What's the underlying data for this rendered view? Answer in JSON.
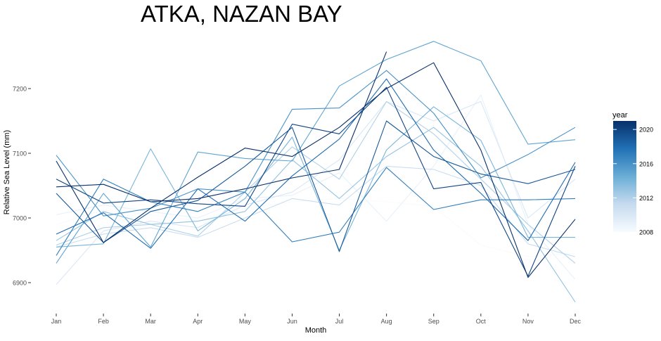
{
  "chart_data": {
    "type": "line",
    "title": "ATKA, NAZAN BAY",
    "xlabel": "Month",
    "ylabel": "Relative Sea Level (mm)",
    "categories": [
      "Jan",
      "Feb",
      "Mar",
      "Apr",
      "May",
      "Jun",
      "Jul",
      "Aug",
      "Sep",
      "Oct",
      "Nov",
      "Dec"
    ],
    "yticks": [
      6900,
      7000,
      7100,
      7200
    ],
    "ylim": [
      6850,
      7290
    ],
    "grid": false,
    "legend": {
      "title": "year",
      "type": "colorbar",
      "position": "right",
      "ticks": [
        2008,
        2012,
        2016,
        2020
      ],
      "range": [
        2008,
        2021
      ],
      "color_low": "#f7fbff",
      "color_high": "#08306b"
    },
    "series": [
      {
        "year": 2008,
        "values": [
          6990,
          7012,
          7005,
          6995,
          7015,
          7025,
          7030,
          7025,
          7018,
          6958,
          6940,
          6945
        ]
      },
      {
        "year": 2009,
        "values": [
          7005,
          7020,
          7010,
          7000,
          7030,
          7035,
          7070,
          6995,
          7080,
          7190,
          6990,
          6905
        ]
      },
      {
        "year": 2010,
        "values": [
          6897,
          6980,
          6995,
          6985,
          7020,
          7040,
          7090,
          7180,
          7150,
          7180,
          7000,
          7060
        ]
      },
      {
        "year": 2011,
        "values": [
          6955,
          6975,
          6985,
          6970,
          7000,
          7030,
          7020,
          7080,
          7075,
          7050,
          6960,
          6940
        ]
      },
      {
        "year": 2012,
        "values": [
          6958,
          6985,
          6990,
          6972,
          7040,
          7110,
          7060,
          7180,
          7130,
          7060,
          6990,
          6930
        ]
      },
      {
        "year": 2013,
        "values": [
          6965,
          7010,
          6990,
          6995,
          7010,
          7090,
          7030,
          7095,
          7140,
          7080,
          6980,
          6870
        ]
      },
      {
        "year": 2014,
        "values": [
          6955,
          6960,
          7107,
          6980,
          7030,
          7125,
          6950,
          7105,
          7172,
          7120,
          6970,
          6970
        ]
      },
      {
        "year": 2015,
        "values": [
          6930,
          7038,
          6955,
          7102,
          7092,
          7088,
          7204,
          7245,
          7273,
          7243,
          7114,
          7121
        ]
      },
      {
        "year": 2016,
        "values": [
          7097,
          7003,
          7015,
          7045,
          7040,
          7168,
          7170,
          7228,
          7162,
          7062,
          7098,
          7140
        ]
      },
      {
        "year": 2017,
        "values": [
          6942,
          7060,
          7025,
          7010,
          7040,
          6963,
          6978,
          7078,
          7013,
          7028,
          7028,
          7030
        ]
      },
      {
        "year": 2018,
        "values": [
          6975,
          7008,
          6953,
          7045,
          6995,
          7065,
          7122,
          7215,
          7105,
          7038,
          6965,
          7086
        ]
      },
      {
        "year": 2019,
        "values": [
          7038,
          6962,
          7010,
          7027,
          7080,
          7140,
          6948,
          7150,
          7095,
          7068,
          7053,
          7075
        ]
      },
      {
        "year": 2020,
        "values": [
          7060,
          7023,
          7028,
          7022,
          7018,
          7145,
          7130,
          7202,
          7045,
          7055,
          6910,
          7080
        ]
      },
      {
        "year": 2021,
        "values": [
          7088,
          6962,
          7015,
          7063,
          7108,
          7095,
          7140,
          7200,
          7240,
          7105,
          6908,
          6998
        ]
      },
      {
        "year": 2022,
        "values": [
          7048,
          7052,
          7025,
          7030,
          7045,
          7062,
          7075,
          7257,
          null,
          null,
          null,
          null
        ]
      }
    ]
  }
}
